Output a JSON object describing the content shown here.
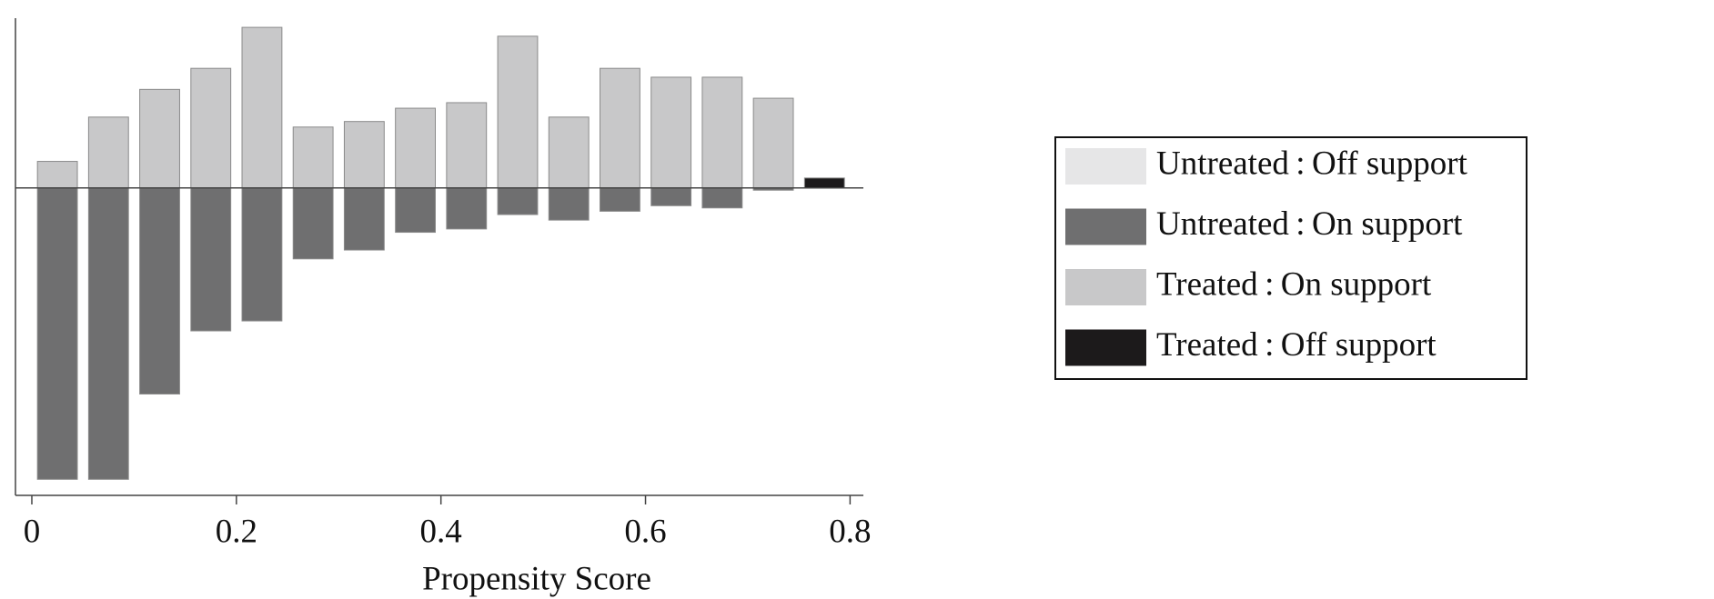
{
  "chart_data": {
    "type": "bar",
    "xlabel": "Propensity Score",
    "x": [
      0.025,
      0.075,
      0.125,
      0.175,
      0.225,
      0.275,
      0.325,
      0.375,
      0.425,
      0.475,
      0.525,
      0.575,
      0.625,
      0.675,
      0.725,
      0.775
    ],
    "series": [
      {
        "name": "Untreated : Off support",
        "color": "#e6e6e7",
        "values": [
          null,
          null,
          null,
          null,
          null,
          null,
          null,
          null,
          null,
          null,
          null,
          null,
          null,
          null,
          null,
          null
        ]
      },
      {
        "name": "Untreated : On support",
        "color": "#6f6f70",
        "values": [
          -52.6,
          -52.6,
          -37.2,
          -25.8,
          -24,
          -12.8,
          -11.2,
          -8,
          -7.4,
          -4.8,
          -5.8,
          -4.2,
          -3.2,
          -3.6,
          -0.4,
          null
        ]
      },
      {
        "name": "Treated : On support",
        "color": "#c8c8c9",
        "values": [
          4.8,
          12.8,
          17.8,
          21.6,
          29,
          11,
          12,
          14.4,
          15.4,
          27.4,
          12.8,
          21.6,
          20,
          20,
          16.2,
          null
        ]
      },
      {
        "name": "Treated : Off support",
        "color": "#1c1a1b",
        "values": [
          null,
          null,
          null,
          null,
          null,
          null,
          null,
          null,
          null,
          null,
          null,
          null,
          null,
          null,
          null,
          1.8
        ]
      }
    ],
    "xlim": [
      -0.016,
      0.813
    ],
    "xticks": [
      0,
      0.2,
      0.4,
      0.6,
      0.8
    ],
    "ylim": [
      -55.5,
      30
    ]
  }
}
